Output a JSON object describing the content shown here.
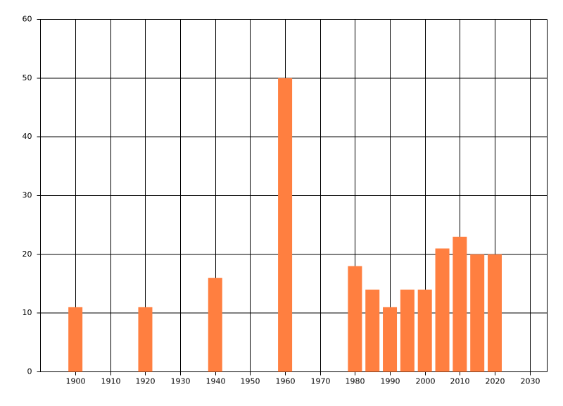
{
  "chart_data": {
    "type": "bar",
    "x": [
      1900,
      1920,
      1940,
      1960,
      1980,
      1985,
      1990,
      1995,
      2000,
      2005,
      2010,
      2015,
      2020
    ],
    "values": [
      11,
      11,
      16,
      50,
      18,
      14,
      11,
      14,
      14,
      21,
      23,
      20,
      20
    ],
    "color": "#ff7f40",
    "xlim": [
      1890,
      2035
    ],
    "xticks": [
      1900,
      1910,
      1920,
      1930,
      1940,
      1950,
      1960,
      1970,
      1980,
      1990,
      2000,
      2010,
      2020,
      2030
    ],
    "ylim": [
      0,
      60
    ],
    "yticks": [
      0,
      10,
      20,
      30,
      40,
      50,
      60
    ],
    "grid": true
  }
}
